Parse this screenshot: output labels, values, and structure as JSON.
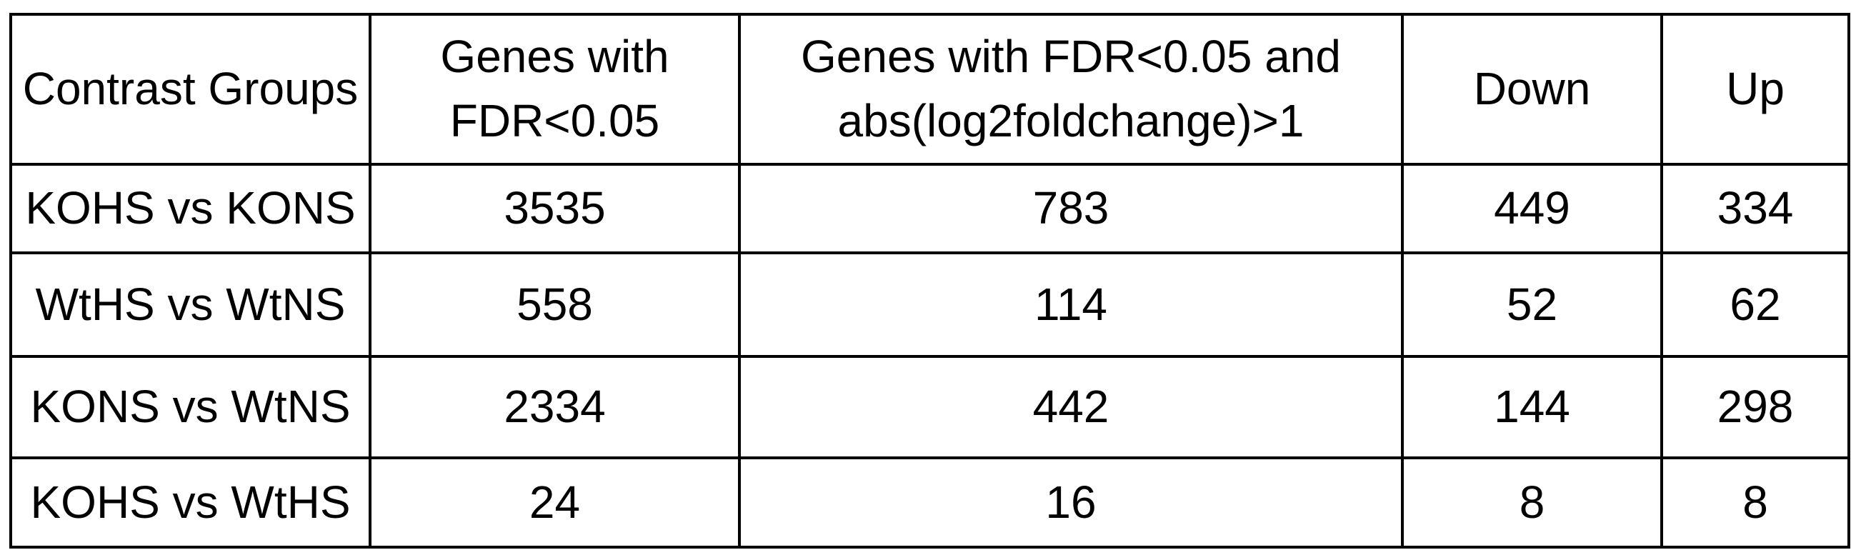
{
  "table": {
    "headers": [
      "Contrast Groups",
      "Genes with FDR<0.05",
      "Genes with FDR<0.05 and abs(log2foldchange)>1",
      "Down",
      "Up"
    ],
    "rows": [
      [
        "KOHS vs KONS",
        "3535",
        "783",
        "449",
        "334"
      ],
      [
        "WtHS vs WtNS",
        "558",
        "114",
        "52",
        "62"
      ],
      [
        "KONS vs WtNS",
        "2334",
        "442",
        "144",
        "298"
      ],
      [
        "KOHS vs WtHS",
        "24",
        "16",
        "8",
        "8"
      ]
    ]
  }
}
